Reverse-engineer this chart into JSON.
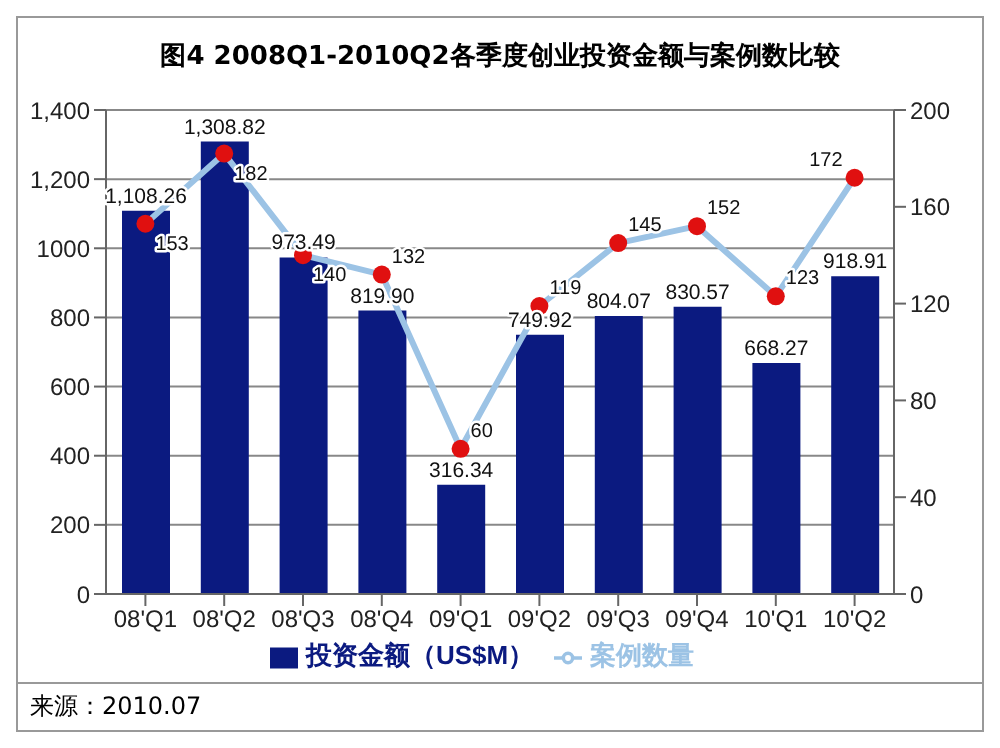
{
  "chart_data": {
    "type": "bar",
    "title": "图4  2008Q1-2010Q2各季度创业投资金额与案例数比较",
    "categories": [
      "08'Q1",
      "08'Q2",
      "08'Q3",
      "08'Q4",
      "09'Q1",
      "09'Q2",
      "09'Q3",
      "09'Q4",
      "10'Q1",
      "10'Q2"
    ],
    "series": [
      {
        "name": "投资金额（US$M）",
        "type": "bar",
        "color": "#0b1a80",
        "values": [
          1108.26,
          1308.82,
          973.49,
          819.9,
          316.34,
          749.92,
          804.07,
          830.57,
          668.27,
          918.91
        ],
        "value_labels": [
          "1,108.26",
          "1,308.82",
          "973.49",
          "819.90",
          "316.34",
          "749.92",
          "804.07",
          "830.57",
          "668.27",
          "918.91"
        ]
      },
      {
        "name": "案例数量",
        "type": "line",
        "axis": "y2",
        "color": "#9cc3e5",
        "values": [
          153,
          182,
          140,
          132,
          60,
          119,
          145,
          152,
          123,
          172
        ],
        "value_labels": [
          "153",
          "182",
          "140",
          "132",
          "60",
          "119",
          "145",
          "152",
          "123",
          "172"
        ]
      }
    ],
    "ylim": [
      0,
      1400
    ],
    "yticks": [
      0,
      200,
      400,
      600,
      800,
      1000,
      {
        "value": 1200,
        "label": "1,200"
      },
      {
        "value": 1400,
        "label": "1,400"
      }
    ],
    "y2lim": [
      0,
      200
    ],
    "y2ticks": [
      0,
      40,
      80,
      120,
      160,
      200
    ],
    "grid": "y",
    "legend": "bottom",
    "marker": "circle",
    "line_style": "solid",
    "annotations": [
      "来源：2010.07"
    ]
  }
}
